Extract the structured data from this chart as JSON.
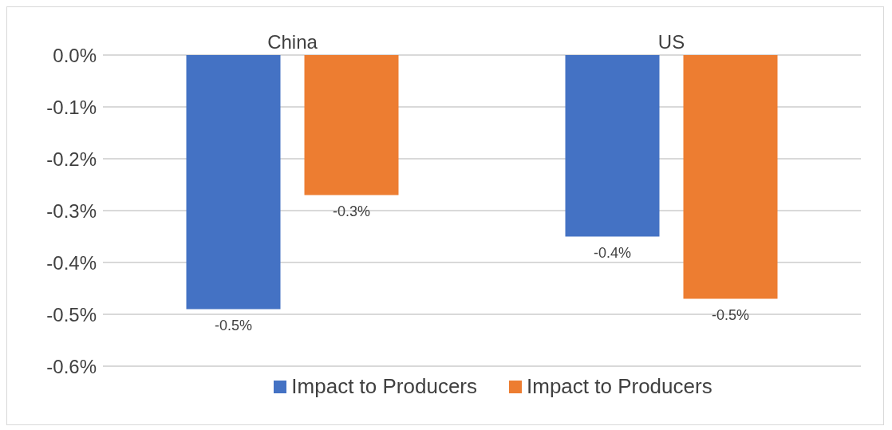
{
  "chart_data": {
    "type": "bar",
    "categories": [
      "China",
      "US"
    ],
    "series": [
      {
        "name": "Impact to Producers",
        "color": "#4472c4",
        "values": [
          -0.49,
          -0.35
        ],
        "value_labels": [
          "-0.5%",
          "-0.4%"
        ]
      },
      {
        "name": "Impact to Producers",
        "color": "#ed7d31",
        "values": [
          -0.27,
          -0.47
        ],
        "value_labels": [
          "-0.3%",
          "-0.5%"
        ]
      }
    ],
    "ylim": [
      -0.6,
      0
    ],
    "yticks": [
      {
        "value": -0.6,
        "label": "-0.6%"
      },
      {
        "value": -0.5,
        "label": "-0.5%"
      },
      {
        "value": -0.4,
        "label": "-0.4%"
      },
      {
        "value": -0.3,
        "label": "-0.3%"
      },
      {
        "value": -0.2,
        "label": "-0.2%"
      },
      {
        "value": -0.1,
        "label": "-0.1%"
      },
      {
        "value": 0,
        "label": "0.0%"
      }
    ],
    "grid": "y",
    "legend": "bottom"
  }
}
